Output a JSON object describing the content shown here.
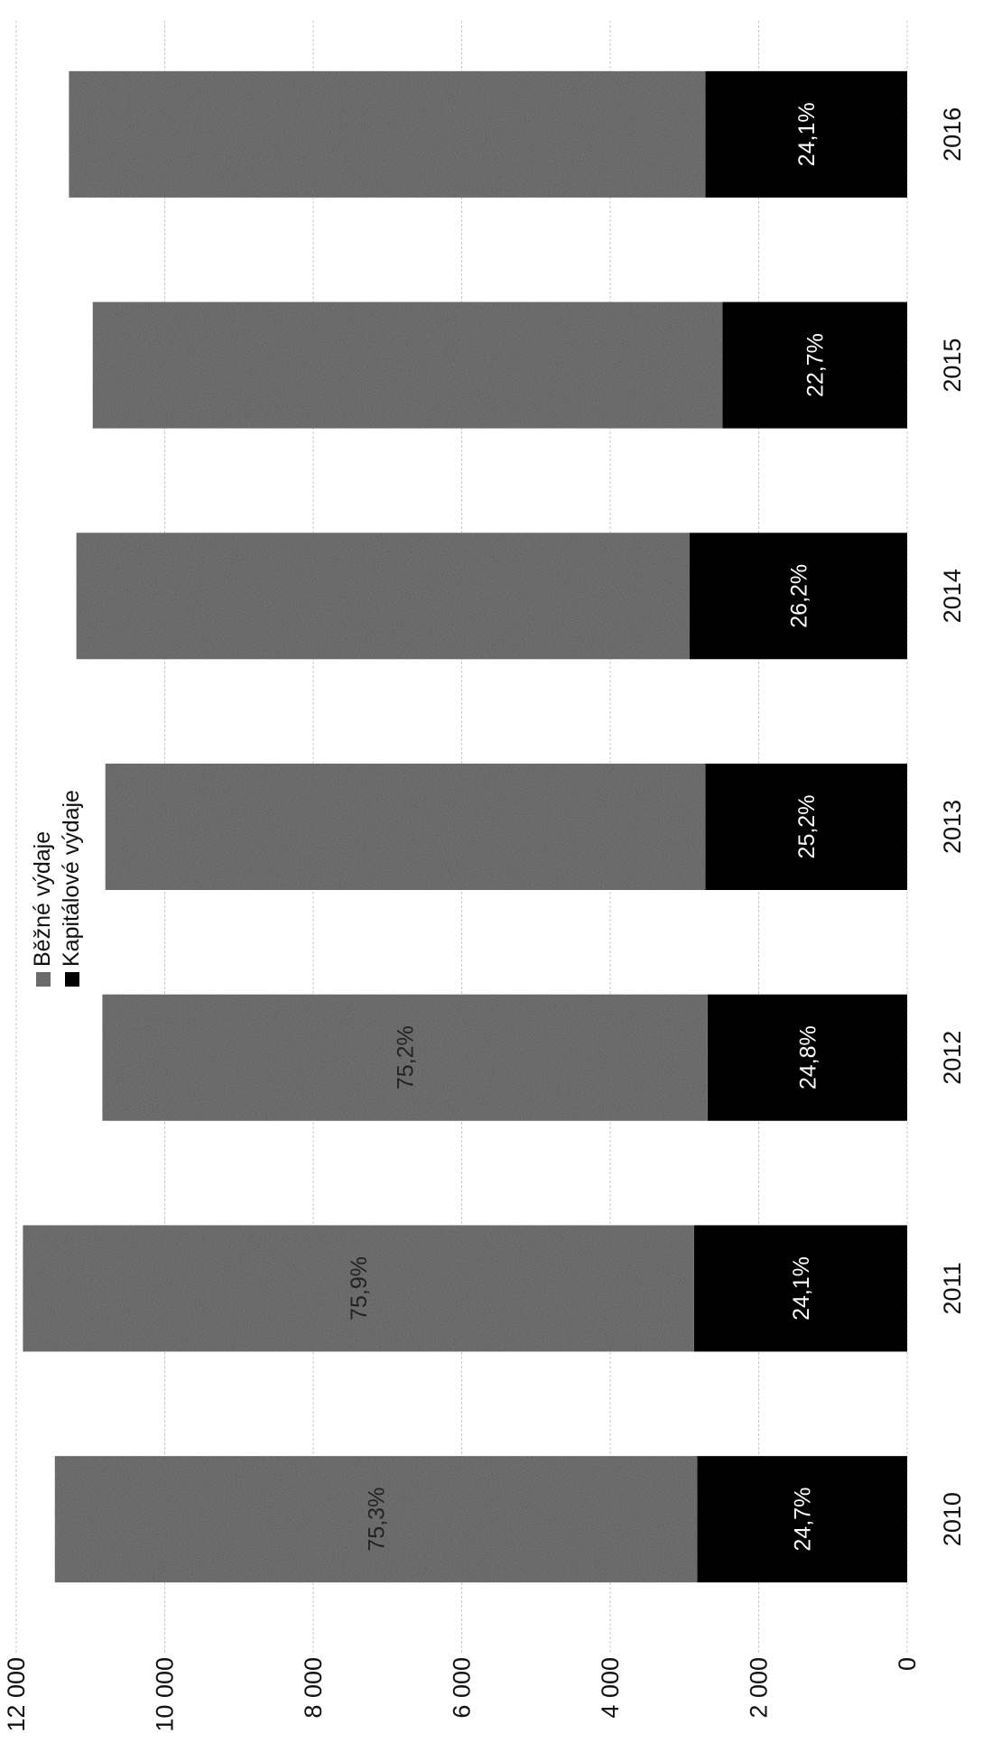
{
  "chart_data": {
    "type": "bar",
    "stacked": true,
    "categories": [
      "2010",
      "2011",
      "2012",
      "2013",
      "2014",
      "2015",
      "2016"
    ],
    "series": [
      {
        "name": "Kapitálové výdaje",
        "color": "#000000",
        "values": [
          2830,
          2870,
          2690,
          2720,
          2930,
          2490,
          2720
        ],
        "labels": [
          "24,7%",
          "24,1%",
          "24,8%",
          "25,2%",
          "26,2%",
          "22,7%",
          "24,1%"
        ]
      },
      {
        "name": "Běžné výdaje",
        "color": "#7a7a7a",
        "values": [
          8650,
          9040,
          8150,
          8080,
          8260,
          8480,
          8570
        ],
        "labels": [
          "75,3%",
          "75,9%",
          "75,2%",
          "",
          "",
          "",
          ""
        ]
      }
    ],
    "ylim": [
      0,
      12000
    ],
    "yticks": [
      "0",
      "2 000",
      "4 000",
      "6 000",
      "8 000",
      "10 000",
      "12 000"
    ],
    "grid": true,
    "legend": "top-center",
    "title": "",
    "xlabel": "",
    "ylabel": ""
  }
}
